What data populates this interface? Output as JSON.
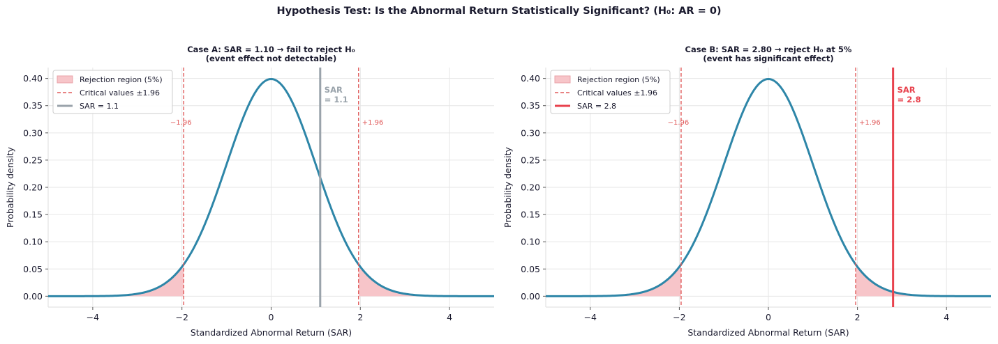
{
  "suptitle": "Hypothesis Test: Is the Abnormal Return Statistically Significant?  (H₀: AR = 0)",
  "colors": {
    "curve": "#2e86a8",
    "critical": "#e05a5a",
    "rejection_fill": "#f7c5c9",
    "sar_not_significant": "#9aa3ab",
    "sar_significant": "#e8424d",
    "grid": "#e6e6e6"
  },
  "chart_data": [
    {
      "type": "line",
      "title_lines": [
        "Case A: SAR = 1.10  →  fail to reject H₀",
        "(event effect not detectable)"
      ],
      "xlabel": "Standardized Abnormal Return (SAR)",
      "ylabel": "Probability density",
      "xlim": [
        -5,
        5
      ],
      "ylim": [
        -0.02,
        0.42
      ],
      "xticks": [
        -4,
        -2,
        0,
        2,
        4
      ],
      "xtick_labels": [
        "−4",
        "−2",
        "0",
        "2",
        "4"
      ],
      "yticks": [
        0.0,
        0.05,
        0.1,
        0.15,
        0.2,
        0.25,
        0.3,
        0.35,
        0.4
      ],
      "ytick_labels": [
        "0.00",
        "0.05",
        "0.10",
        "0.15",
        "0.20",
        "0.25",
        "0.30",
        "0.35",
        "0.40"
      ],
      "grid": true,
      "series": [
        {
          "kind": "density",
          "distribution": "standard normal",
          "mean": 0,
          "sd": 1
        }
      ],
      "critical_values": [
        -1.96,
        1.96
      ],
      "critical_labels": [
        "−1.96",
        "+1.96"
      ],
      "rejection_region_alpha": 0.05,
      "sar": 1.1,
      "sar_significant": false,
      "sar_annotation_lines": [
        "SAR",
        "= 1.1"
      ],
      "legend": {
        "position": "upper left",
        "entries": [
          "Rejection region (5%)",
          "Critical values ±1.96",
          "SAR = 1.1"
        ]
      }
    },
    {
      "type": "line",
      "title_lines": [
        "Case B: SAR = 2.80  →  reject H₀ at 5%",
        "(event has significant effect)"
      ],
      "xlabel": "Standardized Abnormal Return (SAR)",
      "ylabel": "Probability density",
      "xlim": [
        -5,
        5
      ],
      "ylim": [
        -0.02,
        0.42
      ],
      "xticks": [
        -4,
        -2,
        0,
        2,
        4
      ],
      "xtick_labels": [
        "−4",
        "−2",
        "0",
        "2",
        "4"
      ],
      "yticks": [
        0.0,
        0.05,
        0.1,
        0.15,
        0.2,
        0.25,
        0.3,
        0.35,
        0.4
      ],
      "ytick_labels": [
        "0.00",
        "0.05",
        "0.10",
        "0.15",
        "0.20",
        "0.25",
        "0.30",
        "0.35",
        "0.40"
      ],
      "grid": true,
      "series": [
        {
          "kind": "density",
          "distribution": "standard normal",
          "mean": 0,
          "sd": 1
        }
      ],
      "critical_values": [
        -1.96,
        1.96
      ],
      "critical_labels": [
        "−1.96",
        "+1.96"
      ],
      "rejection_region_alpha": 0.05,
      "sar": 2.8,
      "sar_significant": true,
      "sar_annotation_lines": [
        "SAR",
        "= 2.8"
      ],
      "legend": {
        "position": "upper left",
        "entries": [
          "Rejection region (5%)",
          "Critical values ±1.96",
          "SAR = 2.8"
        ]
      }
    }
  ]
}
